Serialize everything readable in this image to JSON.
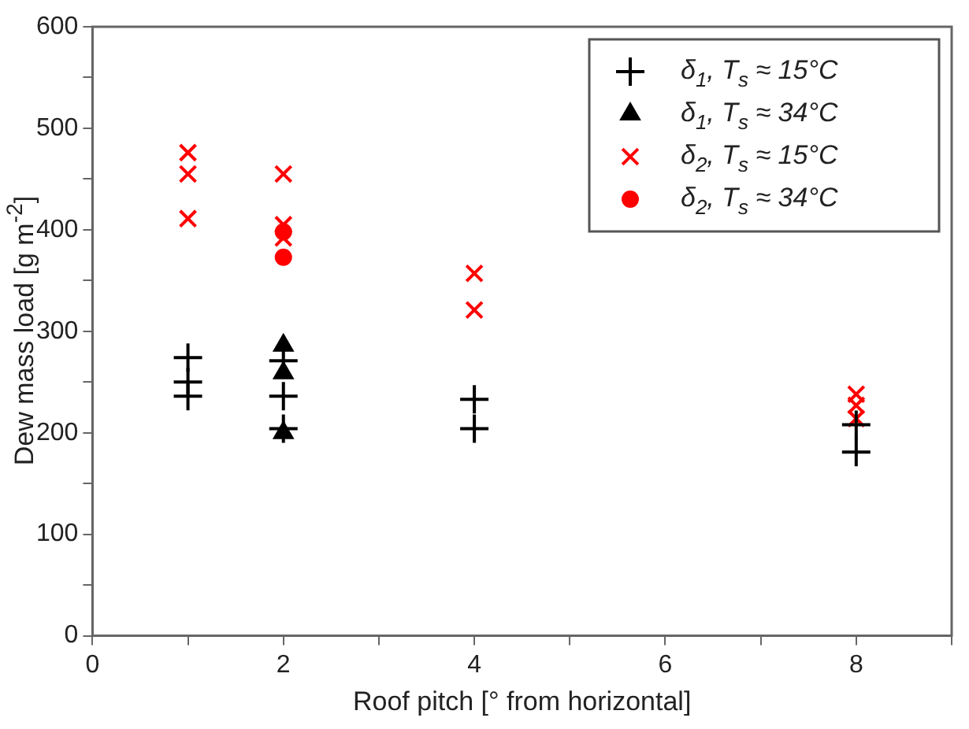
{
  "chart_data": {
    "type": "scatter",
    "xlabel": "Roof pitch [° from horizontal]",
    "ylabel": "Dew mass load [g m$^{-2}$]",
    "xlim": [
      0,
      9
    ],
    "xticks": [
      0,
      {
        "value": 1,
        "label": null
      },
      2,
      {
        "value": 3,
        "label": null
      },
      4,
      {
        "value": 5,
        "label": null
      },
      6,
      {
        "value": 7,
        "label": null
      },
      8,
      {
        "value": 9,
        "label": null
      }
    ],
    "ylim": [
      0,
      600
    ],
    "yticks": [
      0,
      {
        "value": 50,
        "label": null
      },
      100,
      {
        "value": 150,
        "label": null
      },
      200,
      {
        "value": 250,
        "label": null
      },
      300,
      {
        "value": 350,
        "label": null
      },
      400,
      {
        "value": 450,
        "label": null
      },
      500,
      {
        "value": 550,
        "label": null
      },
      600
    ],
    "grid": false,
    "legend": "top right",
    "series": [
      {
        "name": "δ$_{1}$, T$_{s}$ ≈ 15°C",
        "color": "#000000",
        "marker": "cross",
        "x": [
          1,
          1,
          1,
          2,
          2,
          2,
          4,
          4,
          8,
          8
        ],
        "values": [
          274,
          250,
          236,
          271,
          236,
          204,
          233,
          204,
          208,
          181
        ]
      },
      {
        "name": "δ$_{1}$, T$_{s}$ ≈ 34°C",
        "color": "#000000",
        "marker": "triangle",
        "x": [
          2,
          2,
          2
        ],
        "values": [
          286,
          259,
          200
        ]
      },
      {
        "name": "δ$_{2}$, T$_{s}$ ≈ 15°C",
        "color": "#ff0000",
        "marker": "x",
        "x": [
          1,
          1,
          1,
          2,
          2,
          2,
          4,
          4,
          8,
          8,
          8
        ],
        "values": [
          476,
          455,
          411,
          455,
          405,
          392,
          357,
          321,
          238,
          227,
          214
        ]
      },
      {
        "name": "δ$_{2}$, T$_{s}$ ≈ 34°C",
        "color": "#ff0000",
        "marker": "circle",
        "x": [
          2,
          2
        ],
        "values": [
          398,
          373
        ]
      }
    ]
  }
}
